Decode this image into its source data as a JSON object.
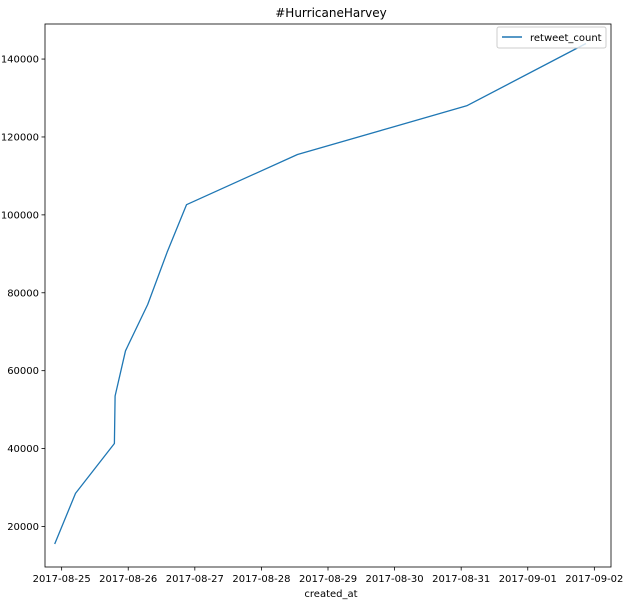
{
  "chart_data": {
    "type": "line",
    "title": "#HurricaneHarvey",
    "xlabel": "created_at",
    "ylabel": "",
    "x_type": "datetime",
    "xlim": [
      "2017-08-24T18:00",
      "2017-09-02T06:00"
    ],
    "ylim": [
      9600,
      149000
    ],
    "x_ticks": [
      "2017-08-25",
      "2017-08-26",
      "2017-08-27",
      "2017-08-28",
      "2017-08-29",
      "2017-08-30",
      "2017-08-31",
      "2017-09-01",
      "2017-09-02"
    ],
    "y_ticks": [
      20000,
      40000,
      60000,
      80000,
      100000,
      120000,
      140000
    ],
    "grid": false,
    "legend": "upper right",
    "series": [
      {
        "name": "retweet_count",
        "color": "#1f77b4",
        "x": [
          "2017-08-24T21:30",
          "2017-08-25T05:00",
          "2017-08-25T19:00",
          "2017-08-25T19:15",
          "2017-08-25T23:00",
          "2017-08-26T07:00",
          "2017-08-26T14:00",
          "2017-08-26T21:00",
          "2017-08-28T13:00",
          "2017-08-31T02:00",
          "2017-09-01T21:00"
        ],
        "y": [
          15500,
          28500,
          41300,
          53500,
          65100,
          77000,
          90400,
          102600,
          115500,
          128000,
          144000
        ]
      }
    ]
  }
}
